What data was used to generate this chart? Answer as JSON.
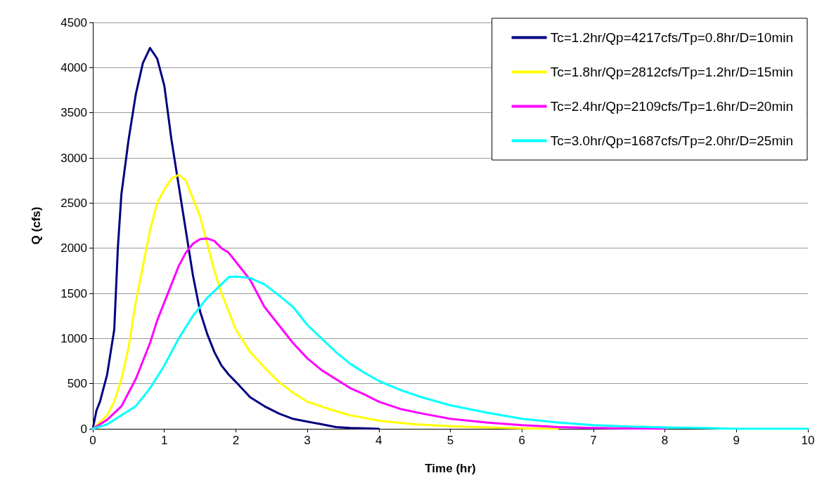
{
  "chart_data": {
    "type": "line",
    "xlabel": "Time (hr)",
    "ylabel": "Q (cfs)",
    "xlim": [
      0,
      10
    ],
    "xticks": [
      0,
      1,
      2,
      3,
      4,
      5,
      6,
      7,
      8,
      9,
      10
    ],
    "ylim": [
      0,
      4500
    ],
    "yticks": [
      0,
      500,
      1000,
      1500,
      2000,
      2500,
      3000,
      3500,
      4000,
      4500
    ],
    "grid": "y",
    "legend": "top right",
    "marker": "none",
    "line_style": "solid",
    "series": [
      {
        "name": "Tc=1.2hr/Qp=4217cfs/Tp=0.8hr/D=10min",
        "color": "#000080",
        "x": [
          0,
          0.05,
          0.1,
          0.2,
          0.3,
          0.35,
          0.4,
          0.5,
          0.6,
          0.7,
          0.8,
          0.9,
          1.0,
          1.1,
          1.2,
          1.3,
          1.4,
          1.5,
          1.6,
          1.7,
          1.8,
          1.9,
          2.0,
          2.2,
          2.4,
          2.6,
          2.8,
          3.0,
          3.2,
          3.4,
          3.6,
          4.0
        ],
        "values": [
          0,
          200,
          300,
          600,
          1100,
          2000,
          2600,
          3200,
          3700,
          4050,
          4217,
          4100,
          3800,
          3200,
          2700,
          2200,
          1700,
          1300,
          1050,
          850,
          700,
          600,
          520,
          350,
          250,
          170,
          110,
          80,
          50,
          20,
          10,
          0
        ]
      },
      {
        "name": "Tc=1.8hr/Qp=2812cfs/Tp=1.2hr/D=15min",
        "color": "#ffff00",
        "x": [
          0,
          0.2,
          0.3,
          0.4,
          0.5,
          0.6,
          0.7,
          0.8,
          0.9,
          1.0,
          1.1,
          1.2,
          1.3,
          1.4,
          1.5,
          1.6,
          1.7,
          1.8,
          1.9,
          2.0,
          2.2,
          2.4,
          2.6,
          2.8,
          3.0,
          3.3,
          3.6,
          4.0,
          4.5,
          5.0,
          5.5,
          6.0,
          6.5
        ],
        "values": [
          0,
          150,
          300,
          550,
          900,
          1400,
          1800,
          2200,
          2500,
          2650,
          2770,
          2812,
          2750,
          2550,
          2350,
          2050,
          1750,
          1500,
          1300,
          1100,
          850,
          680,
          520,
          400,
          300,
          220,
          150,
          90,
          50,
          30,
          15,
          5,
          0
        ]
      },
      {
        "name": "Tc=2.4hr/Qp=2109cfs/Tp=1.6hr/D=20min",
        "color": "#ff00ff",
        "x": [
          0,
          0.2,
          0.4,
          0.5,
          0.6,
          0.7,
          0.8,
          0.9,
          1.0,
          1.1,
          1.2,
          1.3,
          1.4,
          1.5,
          1.6,
          1.7,
          1.8,
          1.9,
          2.0,
          2.2,
          2.4,
          2.6,
          2.8,
          3.0,
          3.2,
          3.4,
          3.6,
          3.8,
          4.0,
          4.3,
          4.6,
          5.0,
          5.5,
          6.0,
          6.5,
          7.0,
          8.0
        ],
        "values": [
          0,
          100,
          250,
          400,
          550,
          750,
          950,
          1200,
          1400,
          1600,
          1800,
          1950,
          2050,
          2100,
          2109,
          2080,
          2000,
          1950,
          1850,
          1650,
          1350,
          1150,
          950,
          780,
          650,
          550,
          450,
          380,
          300,
          220,
          170,
          110,
          70,
          40,
          20,
          10,
          0
        ]
      },
      {
        "name": "Tc=3.0hr/Qp=1687cfs/Tp=2.0hr/D=25min",
        "color": "#00ffff",
        "x": [
          0,
          0.2,
          0.4,
          0.6,
          0.8,
          1.0,
          1.2,
          1.4,
          1.6,
          1.8,
          1.9,
          2.0,
          2.2,
          2.4,
          2.6,
          2.8,
          3.0,
          3.2,
          3.4,
          3.6,
          3.8,
          4.0,
          4.3,
          4.6,
          5.0,
          5.5,
          6.0,
          6.5,
          7.0,
          7.5,
          8.0,
          8.5,
          9.0,
          10.0
        ],
        "values": [
          0,
          50,
          150,
          250,
          450,
          700,
          1000,
          1250,
          1450,
          1600,
          1680,
          1687,
          1670,
          1600,
          1480,
          1350,
          1150,
          1000,
          850,
          720,
          620,
          530,
          430,
          350,
          260,
          180,
          110,
          70,
          40,
          25,
          15,
          10,
          0,
          0
        ]
      }
    ]
  }
}
